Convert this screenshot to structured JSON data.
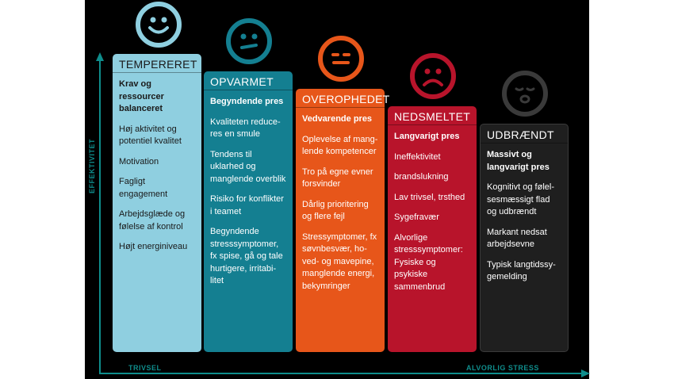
{
  "axes": {
    "y_label": "EFFEKTIVITET",
    "x_left_label": "TRIVSEL",
    "x_right_label": "ALVORLIG STRESS"
  },
  "colors": {
    "background": "#000000",
    "axis": "#0f8d8c",
    "tempereret": "#8fcfe0",
    "opvarmet": "#147f91",
    "overophedet": "#e7561a",
    "nedsmeltet": "#b8142b",
    "udbraendt": "#1f1f1f"
  },
  "stages": [
    {
      "title": "TEMPERERET",
      "face": "happy-face-icon",
      "heading": "Krav og ressourcer balanceret",
      "items": [
        "Høj aktivitet og potentiel kvalitet",
        "Motivation",
        "Fagligt engagement",
        "Arbejdsglæde og følelse af kontrol",
        "Højt energiniveau"
      ]
    },
    {
      "title": "OPVARMET",
      "face": "uneasy-face-icon",
      "heading": "Begyndende pres",
      "items": [
        "Kvaliteten reduce-res en smule",
        "Tendens til uklarhed og manglende overblik",
        "Risiko for konflikter i teamet",
        "Begyndende stresssymptomer, fx spise, gå og tale hurtigere, irritabi-litet"
      ]
    },
    {
      "title": "OVEROPHEDET",
      "face": "neutral-face-icon",
      "heading": "Vedvarende pres",
      "items": [
        "Oplevelse af mang-lende kompetencer",
        "Tro på egne evner forsvinder",
        "Dårlig prioritering og flere fejl",
        "Stressymptomer, fx søvnbesvær, ho-ved- og mavepine, manglende energi, bekymringer"
      ]
    },
    {
      "title": "NEDSMELTET",
      "face": "sad-face-icon",
      "heading": "Langvarigt pres",
      "items": [
        "Ineffektivitet",
        "brandslukning",
        "Lav trivsel, trsthed",
        "Sygefravær",
        "Alvorlige stresssymptomer: Fysiske og psykiske sammenbrud"
      ]
    },
    {
      "title": "UDBRÆNDT",
      "face": "exhausted-face-icon",
      "heading": "Massivt og langvarigt pres",
      "items": [
        "Kognitivt og følel-sesmæssigt flad og udbrændt",
        "Markant nedsat arbejdsevne",
        "Typisk langtidssy-gemelding"
      ]
    }
  ]
}
